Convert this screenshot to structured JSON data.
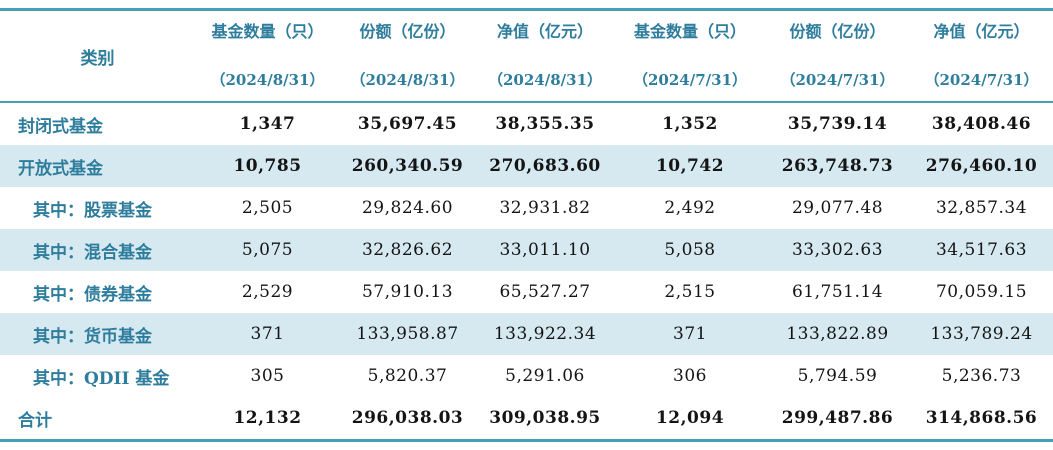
{
  "colors": {
    "accent_rule": "#459FBB",
    "header_text": "#2E7D9C",
    "row_label_text": "#2E7D9C",
    "shaded_row_bg": "#D6E9F1",
    "number_text": "#141414",
    "background": "#FFFFFF"
  },
  "table": {
    "category_header": "类别",
    "column_headers": [
      {
        "title": "基金数量（只）",
        "date": "（2024/8/31）"
      },
      {
        "title": "份额（亿份）",
        "date": "（2024/8/31）"
      },
      {
        "title": "净值（亿元）",
        "date": "（2024/8/31）"
      },
      {
        "title": "基金数量（只）",
        "date": "（2024/7/31）"
      },
      {
        "title": "份额（亿份）",
        "date": "（2024/7/31）"
      },
      {
        "title": "净值（亿元）",
        "date": "（2024/7/31）"
      }
    ],
    "rows": [
      {
        "label": "封闭式基金",
        "values": [
          "1,347",
          "35,697.45",
          "38,355.35",
          "1,352",
          "35,739.14",
          "38,408.46"
        ]
      },
      {
        "label": "开放式基金",
        "values": [
          "10,785",
          "260,340.59",
          "270,683.60",
          "10,742",
          "263,748.73",
          "276,460.10"
        ]
      },
      {
        "label": "其中：股票基金",
        "values": [
          "2,505",
          "29,824.60",
          "32,931.82",
          "2,492",
          "29,077.48",
          "32,857.34"
        ]
      },
      {
        "label": "其中：混合基金",
        "values": [
          "5,075",
          "32,826.62",
          "33,011.10",
          "5,058",
          "33,302.63",
          "34,517.63"
        ]
      },
      {
        "label": "其中：债券基金",
        "values": [
          "2,529",
          "57,910.13",
          "65,527.27",
          "2,515",
          "61,751.14",
          "70,059.15"
        ]
      },
      {
        "label": "其中：货币基金",
        "values": [
          "371",
          "133,958.87",
          "133,922.34",
          "371",
          "133,822.89",
          "133,789.24"
        ]
      },
      {
        "label": "其中：QDII 基金",
        "values": [
          "305",
          "5,820.37",
          "5,291.06",
          "306",
          "5,794.59",
          "5,236.73"
        ]
      },
      {
        "label": "合计",
        "values": [
          "12,132",
          "296,038.03",
          "309,038.95",
          "12,094",
          "299,487.86",
          "314,868.56"
        ]
      }
    ]
  },
  "chart_data": {
    "type": "table",
    "columns": [
      "类别",
      "基金数量（只）（2024/8/31）",
      "份额（亿份）（2024/8/31）",
      "净值（亿元）（2024/8/31）",
      "基金数量（只）（2024/7/31）",
      "份额（亿份）（2024/7/31）",
      "净值（亿元）（2024/7/31）"
    ],
    "rows": [
      [
        "封闭式基金",
        1347,
        35697.45,
        38355.35,
        1352,
        35739.14,
        38408.46
      ],
      [
        "开放式基金",
        10785,
        260340.59,
        270683.6,
        10742,
        263748.73,
        276460.1
      ],
      [
        "其中：股票基金",
        2505,
        29824.6,
        32931.82,
        2492,
        29077.48,
        32857.34
      ],
      [
        "其中：混合基金",
        5075,
        32826.62,
        33011.1,
        5058,
        33302.63,
        34517.63
      ],
      [
        "其中：债券基金",
        2529,
        57910.13,
        65527.27,
        2515,
        61751.14,
        70059.15
      ],
      [
        "其中：货币基金",
        371,
        133958.87,
        133922.34,
        371,
        133822.89,
        133789.24
      ],
      [
        "其中：QDII 基金",
        305,
        5820.37,
        5291.06,
        306,
        5794.59,
        5236.73
      ],
      [
        "合计",
        12132,
        296038.03,
        309038.95,
        12094,
        299487.86,
        314868.56
      ]
    ]
  }
}
